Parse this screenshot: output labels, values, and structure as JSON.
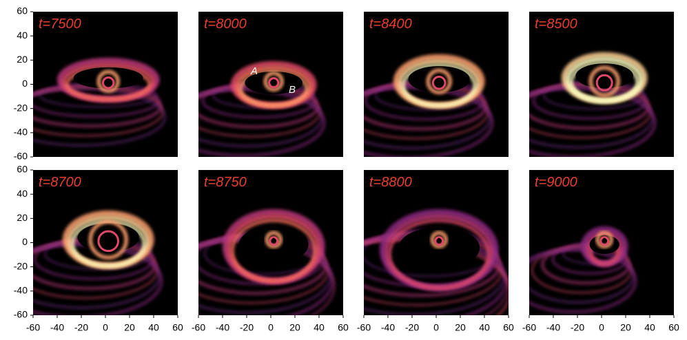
{
  "figure": {
    "panels": [
      {
        "label": "t=7500"
      },
      {
        "label": "t=8000",
        "annotations": [
          "A",
          "B"
        ]
      },
      {
        "label": "t=8400"
      },
      {
        "label": "t=8500"
      },
      {
        "label": "t=8700"
      },
      {
        "label": "t=8750"
      },
      {
        "label": "t=8800"
      },
      {
        "label": "t=9000"
      }
    ],
    "xlim": [
      -60,
      60
    ],
    "ylim": [
      -60,
      60
    ],
    "xticks": [
      -60,
      -40,
      -20,
      0,
      20,
      40,
      60
    ],
    "yticks": [
      60,
      40,
      20,
      0,
      -20,
      -40,
      -60
    ]
  }
}
